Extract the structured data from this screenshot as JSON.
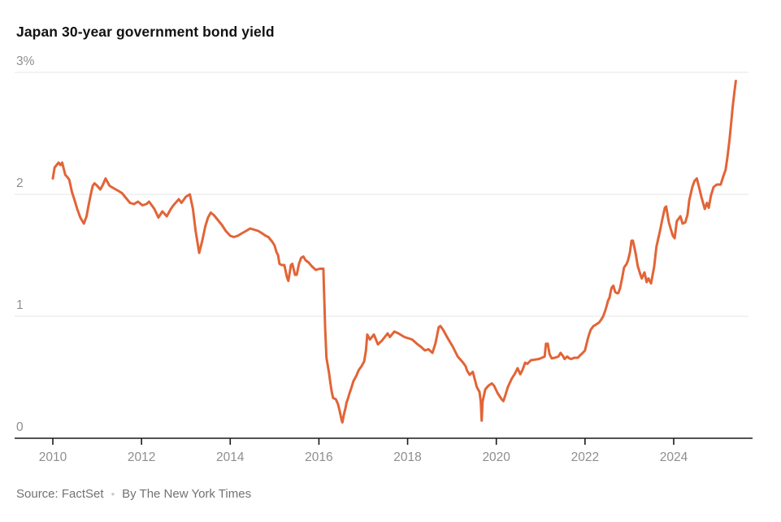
{
  "header": {
    "title": "Japan 30-year government bond yield"
  },
  "footer": {
    "source": "Source: FactSet",
    "separator": "•",
    "byline": "By The New York Times"
  },
  "colors": {
    "line": "#E26437",
    "grid": "#e6e6e6",
    "axis": "#1a1a1a",
    "label": "#8e8e8e"
  },
  "chart_data": {
    "type": "line",
    "title": "Japan 30-year government bond yield",
    "unit": "%",
    "legend": "none",
    "grid": "horizontal",
    "x_axis": {
      "range": [
        2009.9,
        2025.85
      ],
      "ticks": [
        2010,
        2012,
        2014,
        2016,
        2018,
        2020,
        2022,
        2024
      ]
    },
    "y_axis": {
      "range": [
        0,
        3
      ],
      "ticks": [
        {
          "label": "3%",
          "value": 3
        },
        {
          "label": "2",
          "value": 2
        },
        {
          "label": "1",
          "value": 1
        },
        {
          "label": "0",
          "value": 0
        }
      ]
    },
    "series": [
      {
        "name": "Japan 30-year government bond yield",
        "points": [
          [
            2010.0,
            2.13
          ],
          [
            2010.04,
            2.22
          ],
          [
            2010.13,
            2.26
          ],
          [
            2010.17,
            2.24
          ],
          [
            2010.21,
            2.26
          ],
          [
            2010.28,
            2.16
          ],
          [
            2010.33,
            2.14
          ],
          [
            2010.37,
            2.12
          ],
          [
            2010.43,
            2.02
          ],
          [
            2010.5,
            1.94
          ],
          [
            2010.55,
            1.88
          ],
          [
            2010.62,
            1.81
          ],
          [
            2010.7,
            1.76
          ],
          [
            2010.76,
            1.82
          ],
          [
            2010.8,
            1.9
          ],
          [
            2010.85,
            1.99
          ],
          [
            2010.9,
            2.07
          ],
          [
            2010.94,
            2.09
          ],
          [
            2011.0,
            2.07
          ],
          [
            2011.07,
            2.04
          ],
          [
            2011.13,
            2.08
          ],
          [
            2011.19,
            2.13
          ],
          [
            2011.28,
            2.07
          ],
          [
            2011.37,
            2.05
          ],
          [
            2011.47,
            2.03
          ],
          [
            2011.56,
            2.01
          ],
          [
            2011.65,
            1.97
          ],
          [
            2011.74,
            1.93
          ],
          [
            2011.83,
            1.92
          ],
          [
            2011.92,
            1.94
          ],
          [
            2012.02,
            1.91
          ],
          [
            2012.11,
            1.92
          ],
          [
            2012.17,
            1.94
          ],
          [
            2012.29,
            1.88
          ],
          [
            2012.38,
            1.81
          ],
          [
            2012.47,
            1.86
          ],
          [
            2012.57,
            1.82
          ],
          [
            2012.66,
            1.88
          ],
          [
            2012.72,
            1.91
          ],
          [
            2012.84,
            1.96
          ],
          [
            2012.9,
            1.93
          ],
          [
            2013.0,
            1.98
          ],
          [
            2013.09,
            2.0
          ],
          [
            2013.16,
            1.88
          ],
          [
            2013.22,
            1.7
          ],
          [
            2013.3,
            1.52
          ],
          [
            2013.37,
            1.62
          ],
          [
            2013.44,
            1.74
          ],
          [
            2013.5,
            1.81
          ],
          [
            2013.56,
            1.85
          ],
          [
            2013.63,
            1.83
          ],
          [
            2013.72,
            1.79
          ],
          [
            2013.81,
            1.75
          ],
          [
            2013.9,
            1.7
          ],
          [
            2014.0,
            1.66
          ],
          [
            2014.08,
            1.65
          ],
          [
            2014.17,
            1.66
          ],
          [
            2014.26,
            1.68
          ],
          [
            2014.36,
            1.7
          ],
          [
            2014.45,
            1.72
          ],
          [
            2014.54,
            1.71
          ],
          [
            2014.63,
            1.7
          ],
          [
            2014.72,
            1.68
          ],
          [
            2014.8,
            1.66
          ],
          [
            2014.86,
            1.65
          ],
          [
            2014.95,
            1.61
          ],
          [
            2015.0,
            1.58
          ],
          [
            2015.04,
            1.53
          ],
          [
            2015.08,
            1.5
          ],
          [
            2015.11,
            1.43
          ],
          [
            2015.16,
            1.42
          ],
          [
            2015.22,
            1.42
          ],
          [
            2015.28,
            1.32
          ],
          [
            2015.31,
            1.29
          ],
          [
            2015.37,
            1.42
          ],
          [
            2015.4,
            1.43
          ],
          [
            2015.46,
            1.34
          ],
          [
            2015.5,
            1.34
          ],
          [
            2015.55,
            1.43
          ],
          [
            2015.6,
            1.48
          ],
          [
            2015.65,
            1.49
          ],
          [
            2015.7,
            1.46
          ],
          [
            2015.77,
            1.44
          ],
          [
            2015.84,
            1.41
          ],
          [
            2015.93,
            1.38
          ],
          [
            2016.02,
            1.39
          ],
          [
            2016.1,
            1.39
          ],
          [
            2016.14,
            0.9
          ],
          [
            2016.17,
            0.66
          ],
          [
            2016.23,
            0.53
          ],
          [
            2016.26,
            0.45
          ],
          [
            2016.29,
            0.38
          ],
          [
            2016.32,
            0.33
          ],
          [
            2016.38,
            0.32
          ],
          [
            2016.43,
            0.28
          ],
          [
            2016.47,
            0.22
          ],
          [
            2016.51,
            0.15
          ],
          [
            2016.53,
            0.13
          ],
          [
            2016.56,
            0.19
          ],
          [
            2016.6,
            0.25
          ],
          [
            2016.62,
            0.29
          ],
          [
            2016.66,
            0.33
          ],
          [
            2016.69,
            0.37
          ],
          [
            2016.72,
            0.4
          ],
          [
            2016.78,
            0.47
          ],
          [
            2016.84,
            0.51
          ],
          [
            2016.9,
            0.56
          ],
          [
            2016.96,
            0.59
          ],
          [
            2017.02,
            0.63
          ],
          [
            2017.06,
            0.72
          ],
          [
            2017.09,
            0.85
          ],
          [
            2017.15,
            0.81
          ],
          [
            2017.24,
            0.85
          ],
          [
            2017.33,
            0.77
          ],
          [
            2017.42,
            0.8
          ],
          [
            2017.55,
            0.86
          ],
          [
            2017.6,
            0.83
          ],
          [
            2017.7,
            0.875
          ],
          [
            2017.79,
            0.86
          ],
          [
            2017.93,
            0.83
          ],
          [
            2018.1,
            0.81
          ],
          [
            2018.21,
            0.775
          ],
          [
            2018.3,
            0.75
          ],
          [
            2018.39,
            0.72
          ],
          [
            2018.47,
            0.73
          ],
          [
            2018.56,
            0.7
          ],
          [
            2018.63,
            0.78
          ],
          [
            2018.7,
            0.91
          ],
          [
            2018.74,
            0.92
          ],
          [
            2018.8,
            0.89
          ],
          [
            2018.89,
            0.83
          ],
          [
            2019.02,
            0.75
          ],
          [
            2019.13,
            0.67
          ],
          [
            2019.25,
            0.62
          ],
          [
            2019.31,
            0.59
          ],
          [
            2019.34,
            0.555
          ],
          [
            2019.4,
            0.52
          ],
          [
            2019.47,
            0.545
          ],
          [
            2019.56,
            0.42
          ],
          [
            2019.62,
            0.38
          ],
          [
            2019.65,
            0.3
          ],
          [
            2019.67,
            0.145
          ],
          [
            2019.69,
            0.3
          ],
          [
            2019.75,
            0.4
          ],
          [
            2019.82,
            0.43
          ],
          [
            2019.9,
            0.45
          ],
          [
            2019.95,
            0.43
          ],
          [
            2020.03,
            0.37
          ],
          [
            2020.12,
            0.32
          ],
          [
            2020.16,
            0.305
          ],
          [
            2020.21,
            0.36
          ],
          [
            2020.26,
            0.42
          ],
          [
            2020.35,
            0.49
          ],
          [
            2020.42,
            0.53
          ],
          [
            2020.48,
            0.575
          ],
          [
            2020.54,
            0.525
          ],
          [
            2020.59,
            0.56
          ],
          [
            2020.65,
            0.62
          ],
          [
            2020.7,
            0.61
          ],
          [
            2020.78,
            0.64
          ],
          [
            2020.87,
            0.645
          ],
          [
            2020.96,
            0.65
          ],
          [
            2021.03,
            0.66
          ],
          [
            2021.09,
            0.67
          ],
          [
            2021.12,
            0.775
          ],
          [
            2021.16,
            0.775
          ],
          [
            2021.2,
            0.69
          ],
          [
            2021.25,
            0.655
          ],
          [
            2021.32,
            0.66
          ],
          [
            2021.4,
            0.67
          ],
          [
            2021.45,
            0.7
          ],
          [
            2021.51,
            0.67
          ],
          [
            2021.54,
            0.65
          ],
          [
            2021.6,
            0.67
          ],
          [
            2021.65,
            0.655
          ],
          [
            2021.69,
            0.65
          ],
          [
            2021.76,
            0.66
          ],
          [
            2021.84,
            0.66
          ],
          [
            2021.89,
            0.68
          ],
          [
            2021.95,
            0.7
          ],
          [
            2022.0,
            0.72
          ],
          [
            2022.06,
            0.81
          ],
          [
            2022.09,
            0.85
          ],
          [
            2022.13,
            0.89
          ],
          [
            2022.19,
            0.92
          ],
          [
            2022.24,
            0.93
          ],
          [
            2022.32,
            0.95
          ],
          [
            2022.37,
            0.975
          ],
          [
            2022.41,
            1.0
          ],
          [
            2022.43,
            1.02
          ],
          [
            2022.46,
            1.05
          ],
          [
            2022.5,
            1.1
          ],
          [
            2022.52,
            1.13
          ],
          [
            2022.55,
            1.15
          ],
          [
            2022.59,
            1.22
          ],
          [
            2022.61,
            1.24
          ],
          [
            2022.64,
            1.25
          ],
          [
            2022.68,
            1.2
          ],
          [
            2022.72,
            1.19
          ],
          [
            2022.75,
            1.19
          ],
          [
            2022.79,
            1.23
          ],
          [
            2022.84,
            1.32
          ],
          [
            2022.88,
            1.4
          ],
          [
            2022.94,
            1.43
          ],
          [
            2022.97,
            1.46
          ],
          [
            2023.01,
            1.52
          ],
          [
            2023.05,
            1.62
          ],
          [
            2023.08,
            1.62
          ],
          [
            2023.14,
            1.52
          ],
          [
            2023.19,
            1.41
          ],
          [
            2023.25,
            1.34
          ],
          [
            2023.28,
            1.31
          ],
          [
            2023.34,
            1.36
          ],
          [
            2023.39,
            1.28
          ],
          [
            2023.43,
            1.31
          ],
          [
            2023.49,
            1.27
          ],
          [
            2023.56,
            1.41
          ],
          [
            2023.61,
            1.57
          ],
          [
            2023.69,
            1.7
          ],
          [
            2023.74,
            1.79
          ],
          [
            2023.8,
            1.89
          ],
          [
            2023.83,
            1.9
          ],
          [
            2023.89,
            1.77
          ],
          [
            2023.93,
            1.72
          ],
          [
            2023.98,
            1.66
          ],
          [
            2024.02,
            1.64
          ],
          [
            2024.07,
            1.78
          ],
          [
            2024.15,
            1.82
          ],
          [
            2024.2,
            1.76
          ],
          [
            2024.26,
            1.77
          ],
          [
            2024.31,
            1.83
          ],
          [
            2024.35,
            1.95
          ],
          [
            2024.42,
            2.06
          ],
          [
            2024.47,
            2.11
          ],
          [
            2024.52,
            2.13
          ],
          [
            2024.57,
            2.06
          ],
          [
            2024.63,
            1.97
          ],
          [
            2024.7,
            1.88
          ],
          [
            2024.75,
            1.93
          ],
          [
            2024.79,
            1.89
          ],
          [
            2024.84,
            1.99
          ],
          [
            2024.9,
            2.06
          ],
          [
            2024.97,
            2.08
          ],
          [
            2025.06,
            2.08
          ],
          [
            2025.12,
            2.15
          ],
          [
            2025.17,
            2.2
          ],
          [
            2025.21,
            2.3
          ],
          [
            2025.26,
            2.45
          ],
          [
            2025.3,
            2.6
          ],
          [
            2025.33,
            2.72
          ],
          [
            2025.37,
            2.84
          ],
          [
            2025.4,
            2.93
          ]
        ]
      }
    ]
  }
}
